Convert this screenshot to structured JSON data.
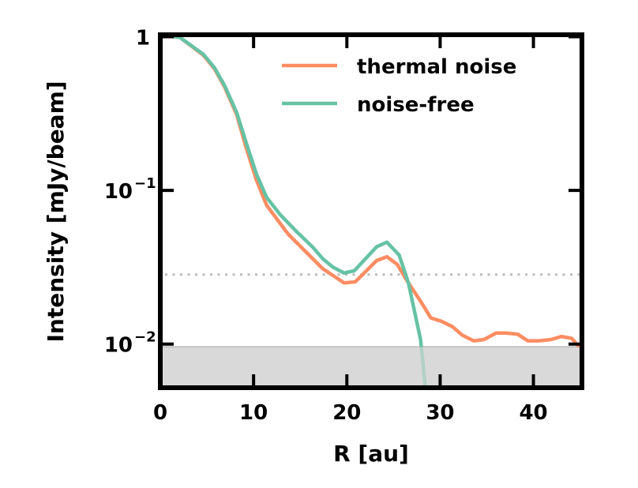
{
  "chart_data": {
    "type": "line",
    "xlabel": "R [au]",
    "ylabel": "Intensity [mJy/beam]",
    "xlim": [
      0,
      45.2
    ],
    "ylim": [
      0.0052,
      1.03
    ],
    "yscale": "log",
    "xticks": [
      0,
      10,
      20,
      30,
      40
    ],
    "xtick_labels": [
      "0",
      "10",
      "20",
      "30",
      "40"
    ],
    "yticks": [
      1,
      0.1,
      0.01
    ],
    "ytick_labels": [
      {
        "base": "1",
        "exp": ""
      },
      {
        "base": "10",
        "exp": "−1"
      },
      {
        "base": "10",
        "exp": "−2"
      }
    ],
    "grid": false,
    "legend_position": "top-right",
    "shaded_region": {
      "ymax": 0.0096,
      "color": "#d9d9d9"
    },
    "reference_line": {
      "y": 0.0283,
      "style": "dotted",
      "color": "#bbbbbb"
    },
    "series": [
      {
        "name": "thermal noise",
        "color": "#fc8d62",
        "x": [
          0.2,
          2.1,
          4.6,
          5.8,
          6.9,
          8.2,
          9.2,
          10.3,
          11.4,
          13.7,
          17.4,
          19.7,
          20.9,
          23.2,
          24.3,
          25.4,
          26.6,
          27.9,
          29.0,
          30.1,
          31.3,
          32.4,
          33.6,
          34.7,
          36.0,
          37.0,
          38.3,
          39.4,
          40.6,
          41.9,
          43.0,
          44.1,
          44.9
        ],
        "y": [
          1.02,
          0.99,
          0.76,
          0.62,
          0.47,
          0.31,
          0.19,
          0.117,
          0.08,
          0.052,
          0.031,
          0.025,
          0.0254,
          0.035,
          0.037,
          0.033,
          0.025,
          0.019,
          0.0148,
          0.0141,
          0.013,
          0.0114,
          0.0105,
          0.0107,
          0.0118,
          0.0118,
          0.0116,
          0.0105,
          0.0105,
          0.0107,
          0.0112,
          0.0109,
          0.0096
        ]
      },
      {
        "name": "noise-free",
        "color": "#66c2a5",
        "x": [
          0.2,
          2.1,
          4.6,
          5.8,
          6.9,
          8.2,
          9.2,
          10.3,
          11.4,
          12.9,
          14.6,
          16.3,
          17.4,
          18.5,
          19.7,
          20.8,
          23.2,
          24.3,
          25.6,
          26.6,
          27.9,
          28.4
        ],
        "y": [
          1.02,
          0.99,
          0.77,
          0.63,
          0.48,
          0.32,
          0.205,
          0.128,
          0.09,
          0.069,
          0.054,
          0.043,
          0.036,
          0.0317,
          0.029,
          0.03,
          0.043,
          0.046,
          0.038,
          0.025,
          0.0107,
          0.0053
        ]
      }
    ]
  }
}
